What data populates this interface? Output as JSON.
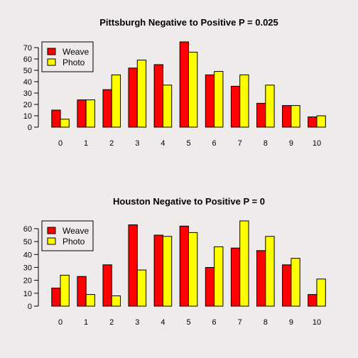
{
  "colors": {
    "background": "#efebea",
    "weave": "#ff0000",
    "photo": "#ffff00",
    "stroke": "#000000"
  },
  "chart_data": [
    {
      "type": "bar",
      "title": "Pittsburgh Negative to Positive P =  0.025",
      "xlabel": "",
      "ylabel": "",
      "categories": [
        "0",
        "1",
        "2",
        "3",
        "4",
        "5",
        "6",
        "7",
        "8",
        "9",
        "10"
      ],
      "series": [
        {
          "name": "Weave",
          "values": [
            15,
            24,
            33,
            52,
            55,
            75,
            46,
            36,
            21,
            19,
            9
          ]
        },
        {
          "name": "Photo",
          "values": [
            7,
            24,
            46,
            59,
            37,
            66,
            49,
            46,
            37,
            19,
            10
          ]
        }
      ],
      "ylim": [
        0,
        75
      ],
      "yticks": [
        0,
        10,
        20,
        30,
        40,
        50,
        60,
        70
      ],
      "grid": false,
      "legend_position": "top-left"
    },
    {
      "type": "bar",
      "title": "Houston Negative to Positive P =  0",
      "xlabel": "",
      "ylabel": "",
      "categories": [
        "0",
        "1",
        "2",
        "3",
        "4",
        "5",
        "6",
        "7",
        "8",
        "9",
        "10"
      ],
      "series": [
        {
          "name": "Weave",
          "values": [
            14,
            23,
            32,
            63,
            55,
            62,
            30,
            45,
            43,
            32,
            9
          ]
        },
        {
          "name": "Photo",
          "values": [
            24,
            9,
            8,
            28,
            54,
            57,
            46,
            66,
            54,
            37,
            21
          ]
        }
      ],
      "ylim": [
        0,
        66
      ],
      "yticks": [
        0,
        10,
        20,
        30,
        40,
        50,
        60
      ],
      "grid": false,
      "legend_position": "top-left"
    }
  ]
}
